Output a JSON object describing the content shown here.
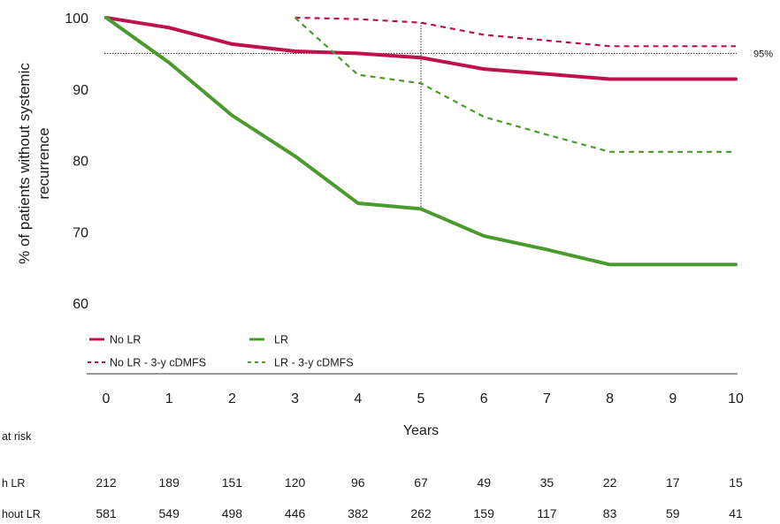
{
  "chart_data": {
    "type": "line",
    "xlabel": "Years",
    "ylabel_lines": [
      "% of patients without systemic",
      "recurrence"
    ],
    "xlim": [
      0,
      10
    ],
    "ylim": [
      60,
      100
    ],
    "x_ticks": [
      "0",
      "1",
      "2",
      "3",
      "4",
      "5",
      "6",
      "7",
      "8",
      "9",
      "10"
    ],
    "y_ticks": [
      "60",
      "70",
      "80",
      "90",
      "100"
    ],
    "grid": false,
    "reference_line": {
      "y": 95,
      "label": "95%"
    },
    "marker_line": {
      "x": 5,
      "y_from": 73.2,
      "y_to": 99.3
    },
    "series": [
      {
        "name": "No LR",
        "style": "solid",
        "color": "#c0114d",
        "x": [
          0,
          1,
          2,
          3,
          4,
          5,
          6,
          7,
          8,
          9,
          10
        ],
        "y": [
          100,
          98.6,
          96.3,
          95.3,
          95.0,
          94.4,
          92.8,
          92.1,
          91.4,
          91.4,
          91.4
        ]
      },
      {
        "name": "LR",
        "style": "solid",
        "color": "#4a9a2e",
        "x": [
          0,
          1,
          2,
          3,
          4,
          5,
          6,
          7,
          8,
          9,
          10
        ],
        "y": [
          100,
          93.7,
          86.3,
          80.6,
          74.0,
          73.2,
          69.4,
          67.5,
          65.4,
          65.4,
          65.4
        ]
      },
      {
        "name": "No LR - 3-y cDMFS",
        "style": "dashed",
        "color": "#c0114d",
        "x": [
          3,
          4,
          5,
          6,
          7,
          8,
          9,
          10
        ],
        "y": [
          100,
          99.8,
          99.3,
          97.6,
          96.8,
          96.0,
          96.0,
          96.0
        ]
      },
      {
        "name": "LR - 3-y cDMFS",
        "style": "dashed",
        "color": "#4a9a2e",
        "x": [
          3,
          4,
          5,
          6,
          7,
          8,
          9,
          10
        ],
        "y": [
          100,
          92.0,
          90.8,
          86.1,
          83.6,
          81.2,
          81.2,
          81.2
        ]
      }
    ],
    "legend_position": "bottom-left",
    "risk_table": {
      "title": "at risk",
      "rows": [
        {
          "label": "h LR",
          "values": [
            "212",
            "189",
            "151",
            "120",
            "96",
            "67",
            "49",
            "35",
            "22",
            "17",
            "15"
          ]
        },
        {
          "label": "hout LR",
          "values": [
            "581",
            "549",
            "498",
            "446",
            "382",
            "262",
            "159",
            "117",
            "83",
            "59",
            "41"
          ]
        }
      ]
    }
  }
}
